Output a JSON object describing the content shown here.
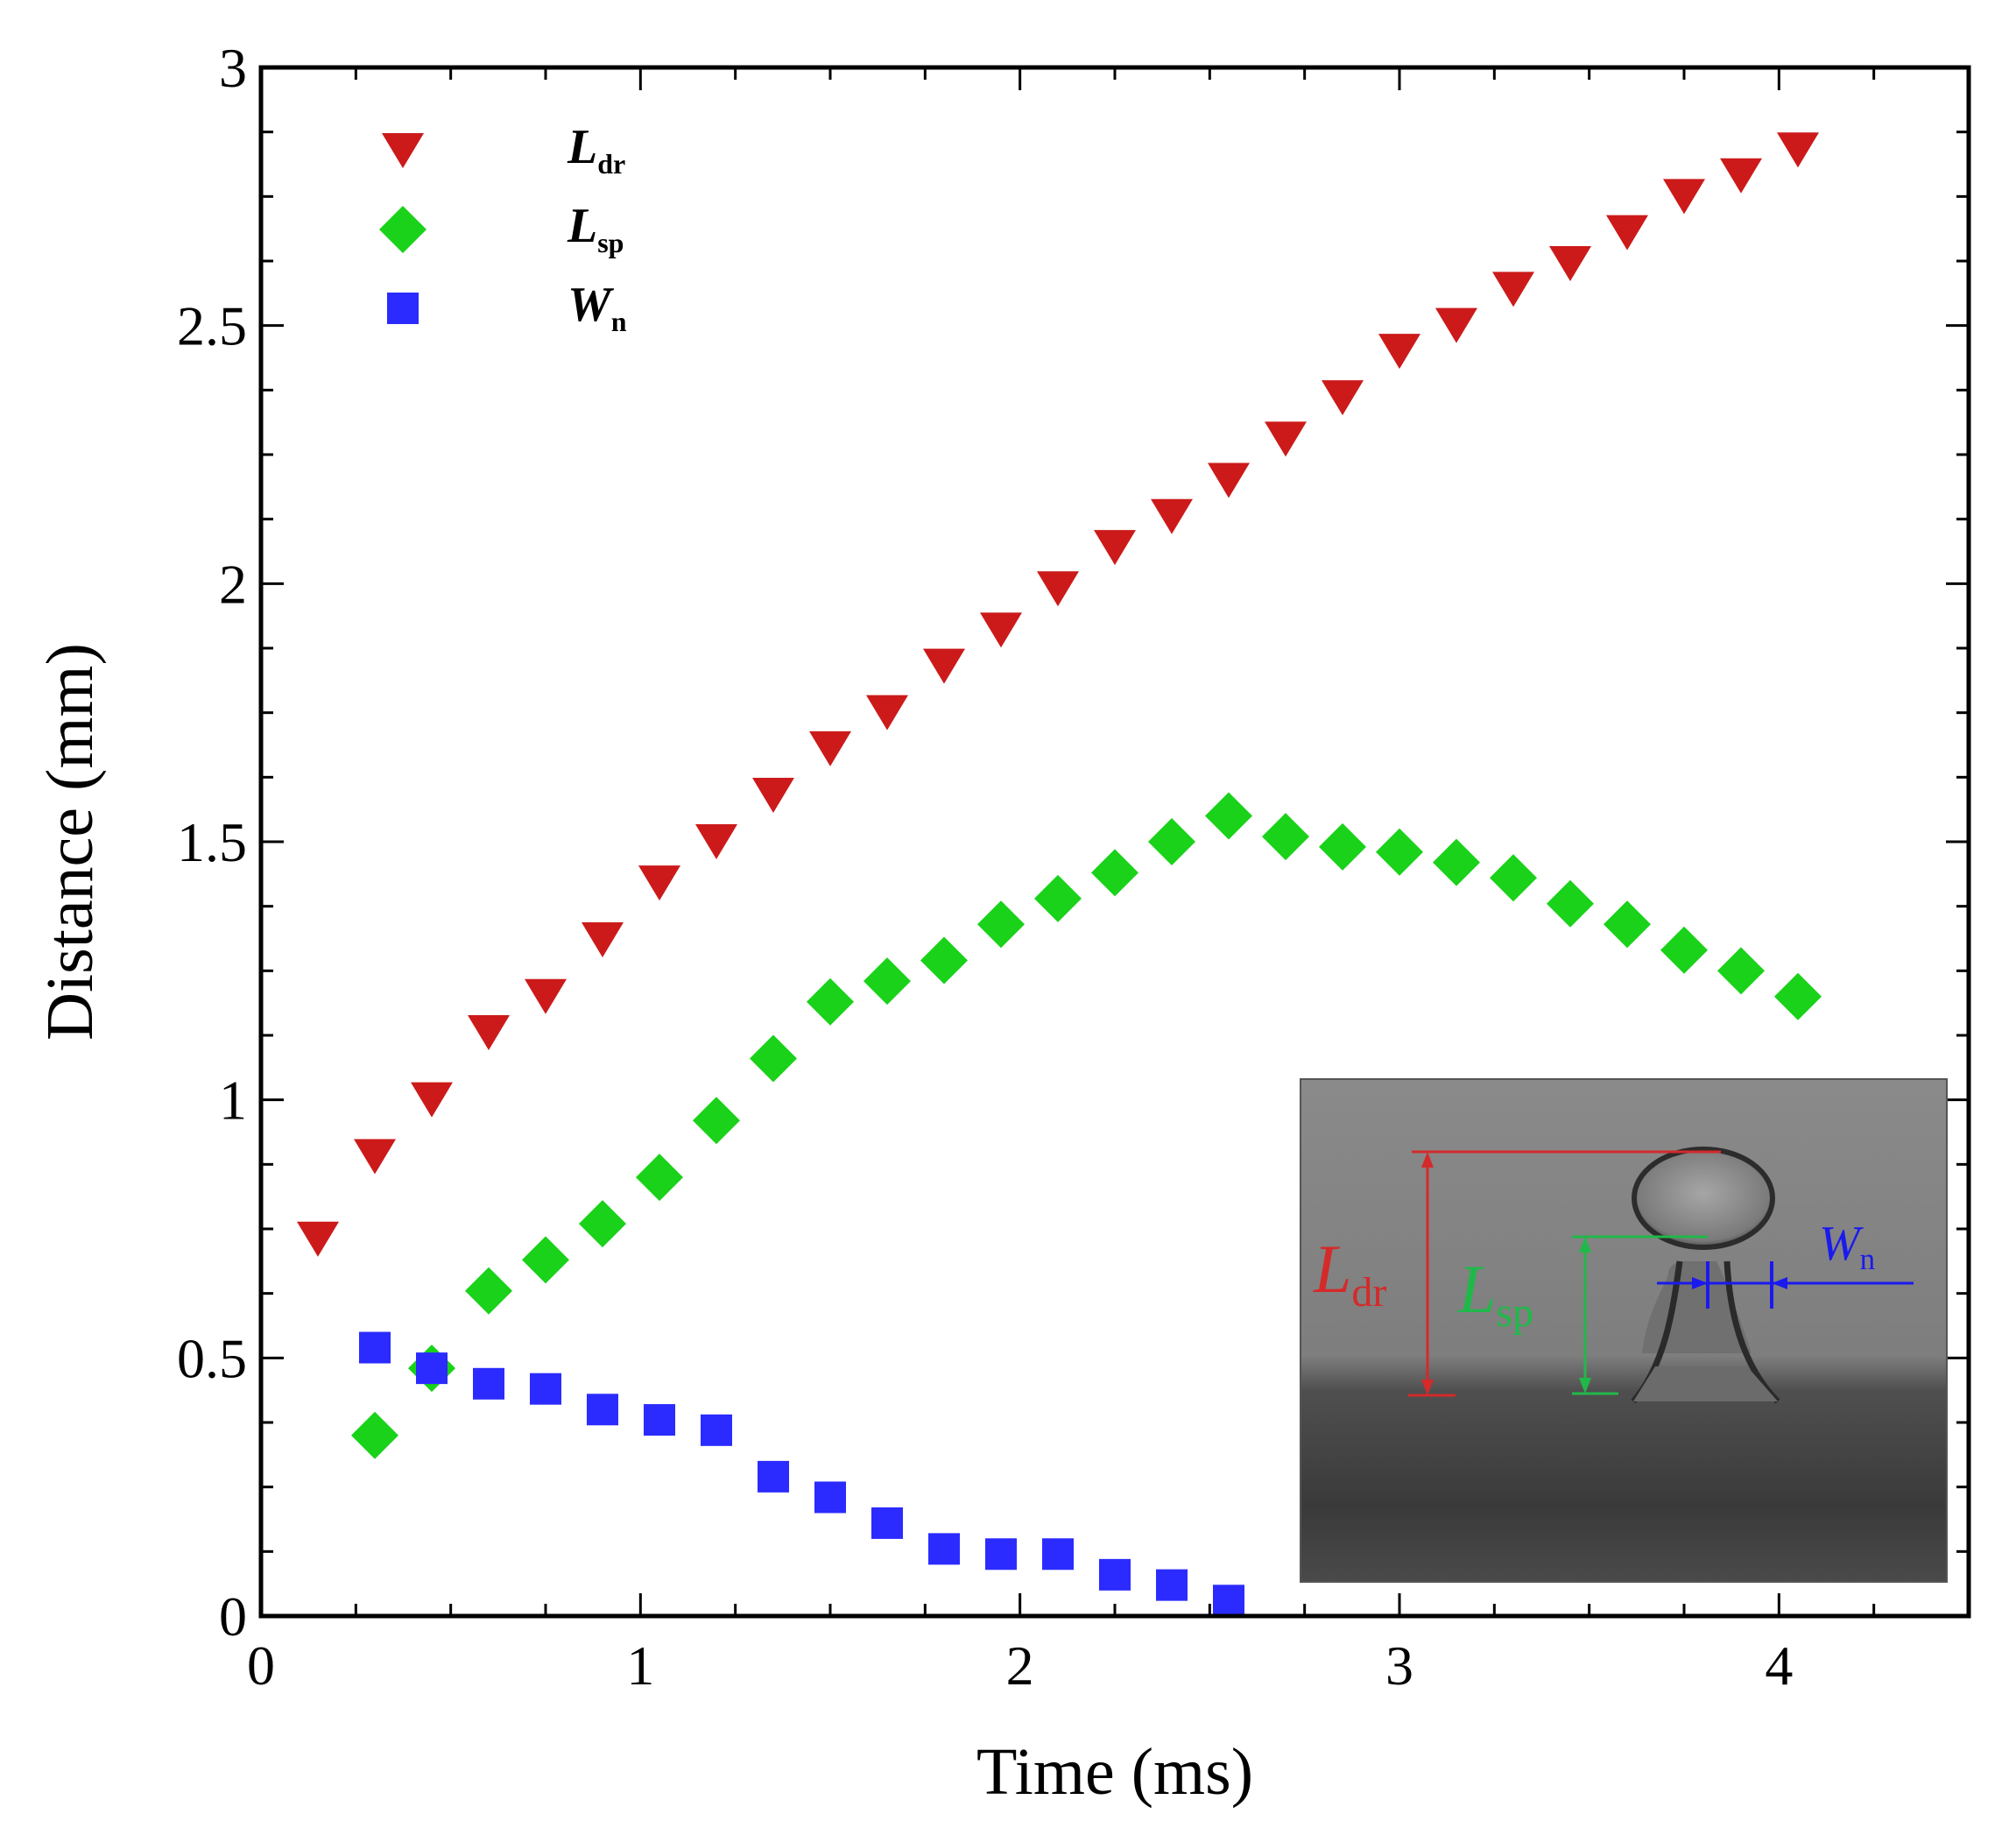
{
  "chart_data": {
    "type": "scatter",
    "title": "",
    "xlabel": "Time (ms)",
    "ylabel": "Distance (mm)",
    "xlim": [
      0,
      4.5
    ],
    "ylim": [
      0,
      3
    ],
    "x_ticks": [
      0,
      1,
      2,
      3,
      4
    ],
    "y_ticks": [
      0,
      0.5,
      1,
      1.5,
      2,
      2.5,
      3
    ],
    "x_tick_labels": [
      "0",
      "1",
      "2",
      "3",
      "4"
    ],
    "y_tick_labels": [
      "0",
      "0.5",
      "1",
      "1.5",
      "2",
      "2.5",
      "3"
    ],
    "grid": false,
    "legend_position": "top-left",
    "series": [
      {
        "name": "L_dr",
        "label_main": "L",
        "label_sub": "dr",
        "marker": "triangle-down",
        "color": "#cc1a1a",
        "x": [
          0.15,
          0.3,
          0.45,
          0.6,
          0.75,
          0.9,
          1.05,
          1.2,
          1.35,
          1.5,
          1.65,
          1.8,
          1.95,
          2.1,
          2.25,
          2.4,
          2.55,
          2.7,
          2.85,
          3.0,
          3.15,
          3.3,
          3.45,
          3.6,
          3.75,
          3.9,
          4.05
        ],
        "y": [
          0.73,
          0.89,
          1.0,
          1.13,
          1.2,
          1.31,
          1.42,
          1.5,
          1.59,
          1.68,
          1.75,
          1.84,
          1.91,
          1.99,
          2.07,
          2.13,
          2.2,
          2.28,
          2.36,
          2.45,
          2.5,
          2.57,
          2.62,
          2.68,
          2.75,
          2.79,
          2.84
        ]
      },
      {
        "name": "L_sp",
        "label_main": "L",
        "label_sub": "sp",
        "marker": "diamond",
        "color": "#19d219",
        "x": [
          0.3,
          0.45,
          0.6,
          0.75,
          0.9,
          1.05,
          1.2,
          1.35,
          1.5,
          1.65,
          1.8,
          1.95,
          2.1,
          2.25,
          2.4,
          2.55,
          2.7,
          2.85,
          3.0,
          3.15,
          3.3,
          3.45,
          3.6,
          3.75,
          3.9,
          4.05
        ],
        "y": [
          0.35,
          0.48,
          0.63,
          0.69,
          0.76,
          0.85,
          0.96,
          1.08,
          1.19,
          1.23,
          1.27,
          1.34,
          1.39,
          1.44,
          1.5,
          1.55,
          1.51,
          1.49,
          1.48,
          1.46,
          1.43,
          1.38,
          1.34,
          1.29,
          1.25,
          1.2
        ]
      },
      {
        "name": "W_n",
        "label_main": "W",
        "label_sub": "n",
        "marker": "square",
        "color": "#2b2bff",
        "x": [
          0.3,
          0.45,
          0.6,
          0.75,
          0.9,
          1.05,
          1.2,
          1.35,
          1.5,
          1.65,
          1.8,
          1.95,
          2.1,
          2.25,
          2.4,
          2.55
        ],
        "y": [
          0.52,
          0.48,
          0.45,
          0.44,
          0.4,
          0.38,
          0.36,
          0.27,
          0.23,
          0.18,
          0.13,
          0.12,
          0.12,
          0.08,
          0.06,
          0.03
        ]
      }
    ],
    "inset": {
      "description": "droplet photograph",
      "labels": [
        {
          "main": "L",
          "sub": "dr",
          "color": "#d42a2a"
        },
        {
          "main": "L",
          "sub": "sp",
          "color": "#21b84a"
        },
        {
          "main": "W",
          "sub": "n",
          "color": "#1a1aee"
        }
      ]
    }
  }
}
